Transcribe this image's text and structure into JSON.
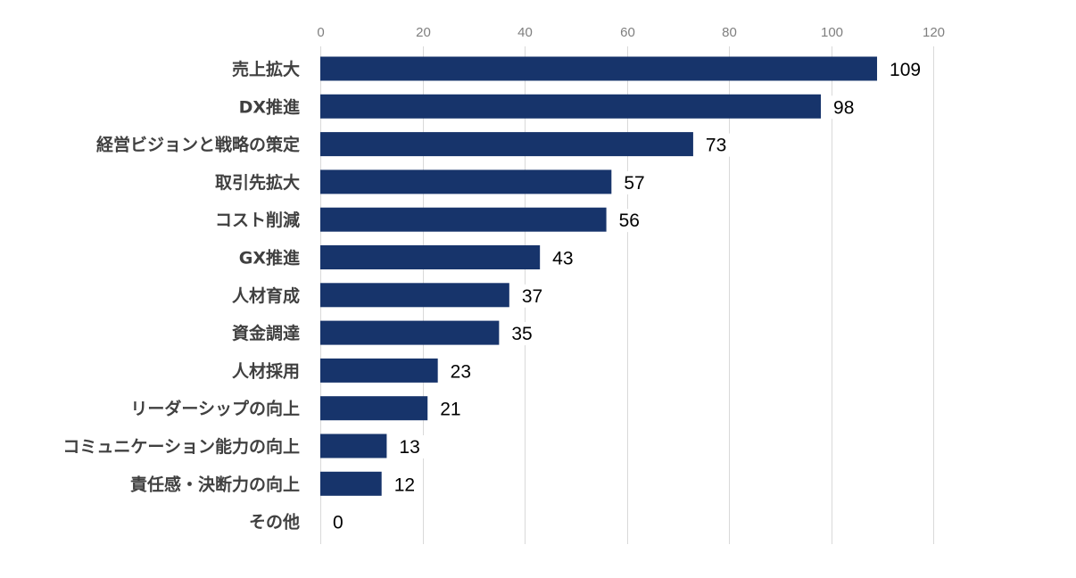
{
  "chart_data": {
    "type": "bar",
    "orientation": "horizontal",
    "categories": [
      "売上拡大",
      "DX推進",
      "経営ビジョンと戦略の策定",
      "取引先拡大",
      "コスト削減",
      "GX推進",
      "人材育成",
      "資金調達",
      "人材採用",
      "リーダーシップの向上",
      "コミュニケーション能力の向上",
      "責任感・決断力の向上",
      "その他"
    ],
    "values": [
      109,
      98,
      73,
      57,
      56,
      43,
      37,
      35,
      23,
      21,
      13,
      12,
      0
    ],
    "xlim": [
      0,
      120
    ],
    "xticks": [
      0,
      20,
      40,
      60,
      80,
      100,
      120
    ],
    "xtick_labels": [
      "0",
      "20",
      "40",
      "60",
      "80",
      "100",
      "120"
    ],
    "axis_position": "top",
    "grid": true,
    "bar_color": "#17346b",
    "title": "",
    "xlabel": "",
    "ylabel": ""
  }
}
